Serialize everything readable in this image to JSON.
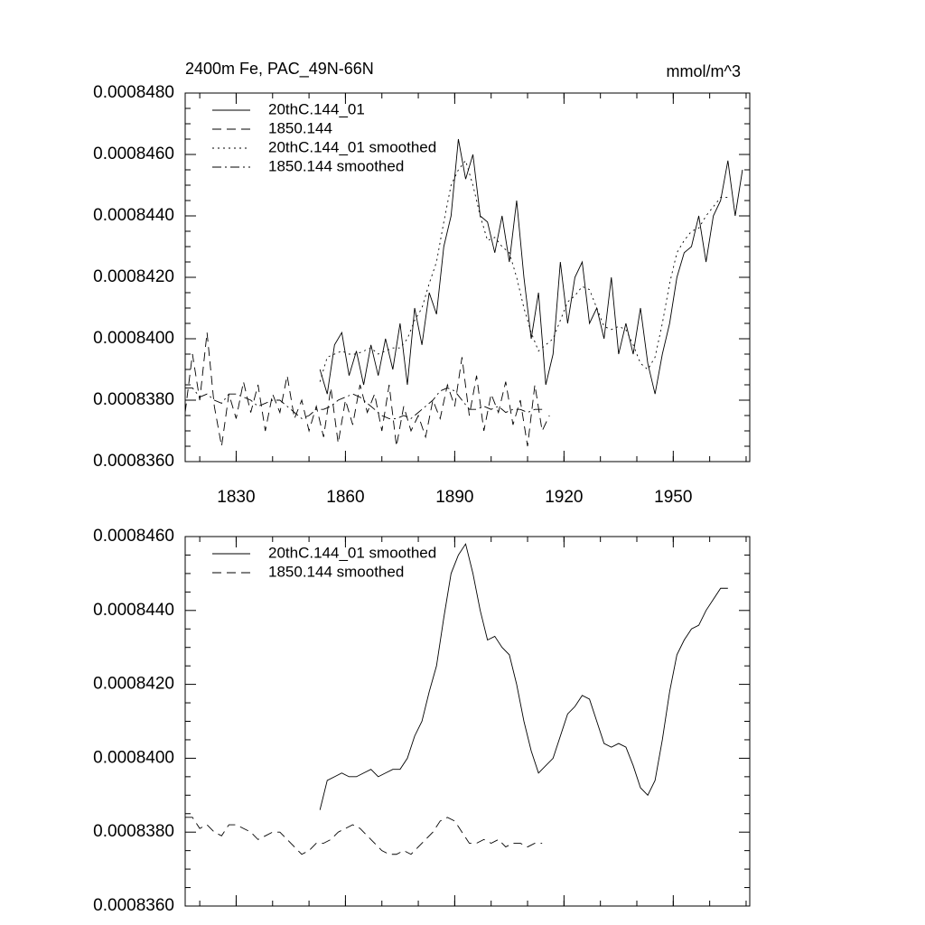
{
  "chart_data": [
    {
      "type": "line",
      "title": "2400m Fe, PAC_49N-66N",
      "unit_label": "mmol/m^3",
      "xlim": [
        1816,
        1971
      ],
      "xticks": [
        1830,
        1860,
        1890,
        1920,
        1950
      ],
      "xtick_labels": true,
      "ylim": [
        0.000836,
        0.000848
      ],
      "yticks": [
        {
          "value": 0.000836,
          "label": "0.0008360"
        },
        {
          "value": 0.000838,
          "label": "0.0008380"
        },
        {
          "value": 0.00084,
          "label": "0.0008400"
        },
        {
          "value": 0.000842,
          "label": "0.0008420"
        },
        {
          "value": 0.000844,
          "label": "0.0008440"
        },
        {
          "value": 0.000846,
          "label": "0.0008460"
        },
        {
          "value": 0.000848,
          "label": "0.0008480"
        }
      ],
      "legend": "upper left",
      "series": [
        {
          "name": "20thC.144_01",
          "color": "#000000",
          "line_style": "solid",
          "x": [
            1853,
            1855,
            1857,
            1859,
            1861,
            1863,
            1865,
            1867,
            1869,
            1871,
            1873,
            1875,
            1877,
            1879,
            1881,
            1883,
            1885,
            1887,
            1889,
            1891,
            1893,
            1895,
            1897,
            1899,
            1901,
            1903,
            1905,
            1907,
            1909,
            1911,
            1913,
            1915,
            1917,
            1919,
            1921,
            1923,
            1925,
            1927,
            1929,
            1931,
            1933,
            1935,
            1937,
            1939,
            1941,
            1943,
            1945,
            1947,
            1949,
            1951,
            1953,
            1955,
            1957,
            1959,
            1961,
            1963,
            1965,
            1967,
            1969
          ],
          "values": [
            0.000839,
            0.0008382,
            0.0008398,
            0.0008402,
            0.0008388,
            0.0008396,
            0.0008385,
            0.0008398,
            0.0008388,
            0.00084,
            0.000839,
            0.0008405,
            0.0008385,
            0.000841,
            0.0008398,
            0.0008415,
            0.0008408,
            0.000843,
            0.000844,
            0.0008465,
            0.0008452,
            0.000846,
            0.000844,
            0.0008438,
            0.0008428,
            0.000844,
            0.0008425,
            0.0008445,
            0.000842,
            0.00084,
            0.0008415,
            0.0008385,
            0.0008395,
            0.0008425,
            0.0008405,
            0.000842,
            0.0008425,
            0.0008405,
            0.000841,
            0.00084,
            0.000842,
            0.0008395,
            0.0008405,
            0.0008395,
            0.000841,
            0.0008392,
            0.0008382,
            0.0008395,
            0.0008405,
            0.000842,
            0.0008428,
            0.000843,
            0.000844,
            0.0008425,
            0.000844,
            0.0008445,
            0.0008458,
            0.000844,
            0.0008455
          ]
        },
        {
          "name": "1850.144",
          "color": "#000000",
          "line_style": "dashed",
          "x": [
            1816,
            1818,
            1820,
            1822,
            1824,
            1826,
            1828,
            1830,
            1832,
            1834,
            1836,
            1838,
            1840,
            1842,
            1844,
            1846,
            1848,
            1850,
            1852,
            1854,
            1856,
            1858,
            1860,
            1862,
            1864,
            1866,
            1868,
            1870,
            1872,
            1874,
            1876,
            1878,
            1880,
            1882,
            1884,
            1886,
            1888,
            1890,
            1892,
            1894,
            1896,
            1898,
            1900,
            1902,
            1904,
            1906,
            1908,
            1910,
            1912,
            1914,
            1916
          ],
          "values": [
            0.0008376,
            0.0008395,
            0.000838,
            0.0008402,
            0.0008378,
            0.0008365,
            0.0008382,
            0.0008374,
            0.0008386,
            0.0008376,
            0.0008385,
            0.000837,
            0.0008382,
            0.0008376,
            0.0008388,
            0.0008374,
            0.000838,
            0.000837,
            0.0008378,
            0.0008368,
            0.0008384,
            0.0008366,
            0.000838,
            0.0008372,
            0.0008385,
            0.0008376,
            0.0008382,
            0.000837,
            0.0008385,
            0.0008365,
            0.0008378,
            0.000837,
            0.0008375,
            0.0008368,
            0.000838,
            0.0008374,
            0.0008385,
            0.0008378,
            0.0008394,
            0.0008375,
            0.0008388,
            0.000837,
            0.0008382,
            0.0008376,
            0.0008386,
            0.0008372,
            0.000838,
            0.0008365,
            0.0008385,
            0.000837,
            0.0008375
          ]
        },
        {
          "name": "20thC.144_01 smoothed",
          "color": "#000000",
          "line_style": "dotted",
          "x": [
            1853,
            1855,
            1857,
            1859,
            1861,
            1863,
            1865,
            1867,
            1869,
            1871,
            1873,
            1875,
            1877,
            1879,
            1881,
            1883,
            1885,
            1887,
            1889,
            1891,
            1893,
            1895,
            1897,
            1899,
            1901,
            1903,
            1905,
            1907,
            1909,
            1911,
            1913,
            1915,
            1917,
            1919,
            1921,
            1923,
            1925,
            1927,
            1929,
            1931,
            1933,
            1935,
            1937,
            1939,
            1941,
            1943,
            1945,
            1947,
            1949,
            1951,
            1953,
            1955,
            1957,
            1959,
            1961,
            1963,
            1965
          ],
          "values": [
            0.0008386,
            0.0008394,
            0.0008395,
            0.0008396,
            0.0008395,
            0.0008395,
            0.0008396,
            0.0008397,
            0.0008395,
            0.0008396,
            0.0008397,
            0.0008397,
            0.00084,
            0.0008406,
            0.000841,
            0.0008418,
            0.0008425,
            0.0008438,
            0.000845,
            0.0008455,
            0.0008458,
            0.000845,
            0.000844,
            0.0008432,
            0.0008433,
            0.000843,
            0.0008428,
            0.000842,
            0.000841,
            0.0008402,
            0.0008396,
            0.0008398,
            0.00084,
            0.0008406,
            0.0008412,
            0.0008414,
            0.0008417,
            0.0008416,
            0.000841,
            0.0008404,
            0.0008403,
            0.0008404,
            0.0008403,
            0.0008398,
            0.0008392,
            0.000839,
            0.0008394,
            0.0008405,
            0.0008418,
            0.0008428,
            0.0008432,
            0.0008435,
            0.0008436,
            0.000844,
            0.0008443,
            0.0008446,
            0.0008446
          ]
        },
        {
          "name": "1850.144 smoothed",
          "color": "#000000",
          "line_style": "dashdot",
          "x": [
            1816,
            1818,
            1820,
            1822,
            1824,
            1826,
            1828,
            1830,
            1832,
            1834,
            1836,
            1838,
            1840,
            1842,
            1844,
            1846,
            1848,
            1850,
            1852,
            1854,
            1856,
            1858,
            1860,
            1862,
            1864,
            1866,
            1868,
            1870,
            1872,
            1874,
            1876,
            1878,
            1880,
            1882,
            1884,
            1886,
            1888,
            1890,
            1892,
            1894,
            1896,
            1898,
            1900,
            1902,
            1904,
            1906,
            1908,
            1910,
            1912,
            1914
          ],
          "values": [
            0.0008384,
            0.0008384,
            0.0008381,
            0.0008382,
            0.000838,
            0.0008379,
            0.0008382,
            0.0008382,
            0.0008381,
            0.000838,
            0.0008378,
            0.0008379,
            0.000838,
            0.000838,
            0.0008378,
            0.0008376,
            0.0008374,
            0.0008375,
            0.0008377,
            0.0008377,
            0.0008378,
            0.000838,
            0.0008381,
            0.0008382,
            0.0008381,
            0.0008379,
            0.0008377,
            0.0008375,
            0.0008374,
            0.0008374,
            0.0008375,
            0.0008374,
            0.0008376,
            0.0008378,
            0.000838,
            0.0008383,
            0.0008384,
            0.0008383,
            0.000838,
            0.0008377,
            0.0008377,
            0.0008378,
            0.0008377,
            0.0008378,
            0.0008376,
            0.0008377,
            0.0008377,
            0.0008376,
            0.0008377,
            0.0008377
          ]
        }
      ]
    },
    {
      "type": "line",
      "xlim": [
        1816,
        1971
      ],
      "xticks": [
        1830,
        1860,
        1890,
        1920,
        1950
      ],
      "xtick_labels": false,
      "ylim": [
        0.000836,
        0.000846
      ],
      "yticks": [
        {
          "value": 0.000836,
          "label": "0.0008360"
        },
        {
          "value": 0.000838,
          "label": "0.0008380"
        },
        {
          "value": 0.00084,
          "label": "0.0008400"
        },
        {
          "value": 0.000842,
          "label": "0.0008420"
        },
        {
          "value": 0.000844,
          "label": "0.0008440"
        },
        {
          "value": 0.000846,
          "label": "0.0008460"
        }
      ],
      "legend": "upper left",
      "series": [
        {
          "name": "20thC.144_01 smoothed",
          "color": "#000000",
          "line_style": "solid",
          "x": [
            1853,
            1855,
            1857,
            1859,
            1861,
            1863,
            1865,
            1867,
            1869,
            1871,
            1873,
            1875,
            1877,
            1879,
            1881,
            1883,
            1885,
            1887,
            1889,
            1891,
            1893,
            1895,
            1897,
            1899,
            1901,
            1903,
            1905,
            1907,
            1909,
            1911,
            1913,
            1915,
            1917,
            1919,
            1921,
            1923,
            1925,
            1927,
            1929,
            1931,
            1933,
            1935,
            1937,
            1939,
            1941,
            1943,
            1945,
            1947,
            1949,
            1951,
            1953,
            1955,
            1957,
            1959,
            1961,
            1963,
            1965
          ],
          "values": [
            0.0008386,
            0.0008394,
            0.0008395,
            0.0008396,
            0.0008395,
            0.0008395,
            0.0008396,
            0.0008397,
            0.0008395,
            0.0008396,
            0.0008397,
            0.0008397,
            0.00084,
            0.0008406,
            0.000841,
            0.0008418,
            0.0008425,
            0.0008438,
            0.000845,
            0.0008455,
            0.0008458,
            0.000845,
            0.000844,
            0.0008432,
            0.0008433,
            0.000843,
            0.0008428,
            0.000842,
            0.000841,
            0.0008402,
            0.0008396,
            0.0008398,
            0.00084,
            0.0008406,
            0.0008412,
            0.0008414,
            0.0008417,
            0.0008416,
            0.000841,
            0.0008404,
            0.0008403,
            0.0008404,
            0.0008403,
            0.0008398,
            0.0008392,
            0.000839,
            0.0008394,
            0.0008405,
            0.0008418,
            0.0008428,
            0.0008432,
            0.0008435,
            0.0008436,
            0.000844,
            0.0008443,
            0.0008446,
            0.0008446
          ]
        },
        {
          "name": "1850.144 smoothed",
          "color": "#000000",
          "line_style": "dashed",
          "x": [
            1816,
            1818,
            1820,
            1822,
            1824,
            1826,
            1828,
            1830,
            1832,
            1834,
            1836,
            1838,
            1840,
            1842,
            1844,
            1846,
            1848,
            1850,
            1852,
            1854,
            1856,
            1858,
            1860,
            1862,
            1864,
            1866,
            1868,
            1870,
            1872,
            1874,
            1876,
            1878,
            1880,
            1882,
            1884,
            1886,
            1888,
            1890,
            1892,
            1894,
            1896,
            1898,
            1900,
            1902,
            1904,
            1906,
            1908,
            1910,
            1912,
            1914
          ],
          "values": [
            0.0008384,
            0.0008384,
            0.0008381,
            0.0008382,
            0.000838,
            0.0008379,
            0.0008382,
            0.0008382,
            0.0008381,
            0.000838,
            0.0008378,
            0.0008379,
            0.000838,
            0.000838,
            0.0008378,
            0.0008376,
            0.0008374,
            0.0008375,
            0.0008377,
            0.0008377,
            0.0008378,
            0.000838,
            0.0008381,
            0.0008382,
            0.0008381,
            0.0008379,
            0.0008377,
            0.0008375,
            0.0008374,
            0.0008374,
            0.0008375,
            0.0008374,
            0.0008376,
            0.0008378,
            0.000838,
            0.0008383,
            0.0008384,
            0.0008383,
            0.000838,
            0.0008377,
            0.0008377,
            0.0008378,
            0.0008377,
            0.0008378,
            0.0008376,
            0.0008377,
            0.0008377,
            0.0008376,
            0.0008377,
            0.0008377
          ]
        }
      ]
    }
  ]
}
